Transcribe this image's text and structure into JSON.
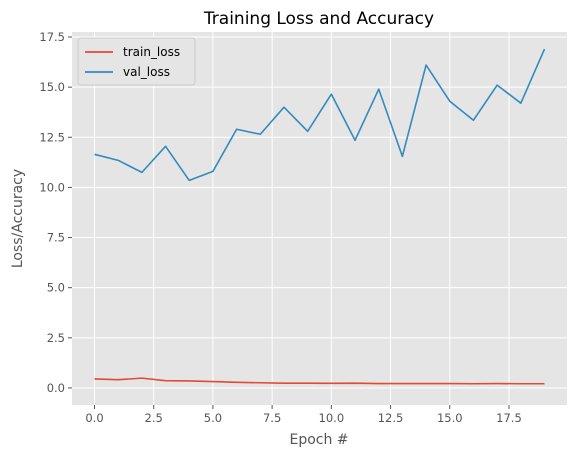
{
  "chart_data": {
    "type": "line",
    "title": "Training Loss and Accuracy",
    "xlabel": "Epoch #",
    "ylabel": "Loss/Accuracy",
    "xlim": [
      -0.95,
      19.95
    ],
    "ylim": [
      -0.85,
      17.75
    ],
    "xticks": [
      0.0,
      2.5,
      5.0,
      7.5,
      10.0,
      12.5,
      15.0,
      17.5
    ],
    "xtick_labels": [
      "0.0",
      "2.5",
      "5.0",
      "7.5",
      "10.0",
      "12.5",
      "15.0",
      "17.5"
    ],
    "yticks": [
      0.0,
      2.5,
      5.0,
      7.5,
      10.0,
      12.5,
      15.0,
      17.5
    ],
    "ytick_labels": [
      "0.0",
      "2.5",
      "5.0",
      "7.5",
      "10.0",
      "12.5",
      "15.0",
      "17.5"
    ],
    "grid": true,
    "legend_position": "top-left",
    "x": [
      0,
      1,
      2,
      3,
      4,
      5,
      6,
      7,
      8,
      9,
      10,
      11,
      12,
      13,
      14,
      15,
      16,
      17,
      18,
      19
    ],
    "series": [
      {
        "name": "train_loss",
        "color": "#E24A33",
        "values": [
          0.45,
          0.41,
          0.49,
          0.36,
          0.35,
          0.32,
          0.28,
          0.26,
          0.24,
          0.24,
          0.23,
          0.24,
          0.22,
          0.22,
          0.22,
          0.22,
          0.21,
          0.22,
          0.21,
          0.21
        ]
      },
      {
        "name": "val_loss",
        "color": "#348ABD",
        "values": [
          11.65,
          11.35,
          10.75,
          12.05,
          10.35,
          10.8,
          12.9,
          12.65,
          14.0,
          12.8,
          14.65,
          12.35,
          14.9,
          11.55,
          16.1,
          14.3,
          13.35,
          15.1,
          14.2,
          16.9
        ]
      }
    ]
  }
}
